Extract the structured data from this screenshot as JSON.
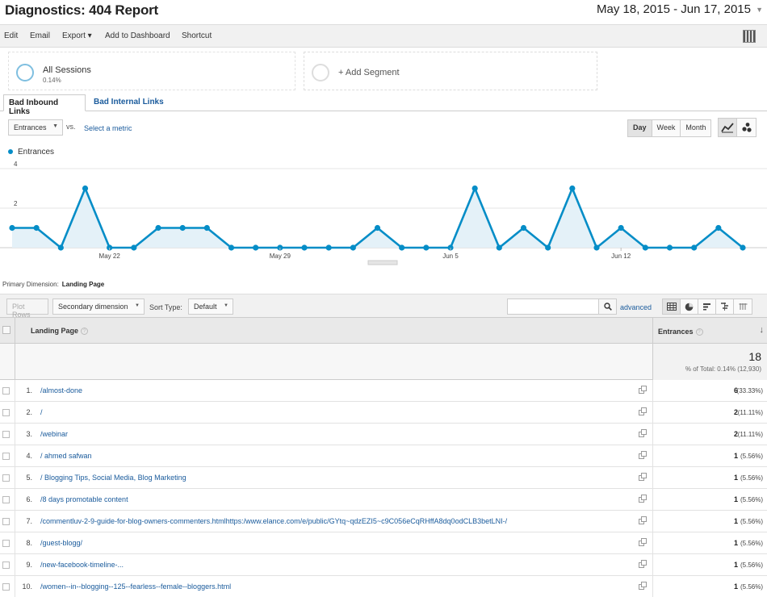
{
  "header": {
    "title": "Diagnostics: 404 Report",
    "date_range": "May 18, 2015 - Jun 17, 2015"
  },
  "toolbar": {
    "items": [
      "Edit",
      "Email",
      "Export ▾",
      "Add to Dashboard",
      "Shortcut"
    ]
  },
  "segments": {
    "segment1_name": "All Sessions",
    "segment1_pct": "0.14%",
    "add_segment": "+ Add Segment"
  },
  "tabs": {
    "inbound": "Bad Inbound Links",
    "internal": "Bad Internal Links"
  },
  "chart_controls": {
    "metric": "Entrances",
    "vs": "vs.",
    "select_metric": "Select a metric",
    "periods": [
      "Day",
      "Week",
      "Month"
    ],
    "active_period": "Day"
  },
  "chart_data": {
    "type": "area",
    "series": [
      {
        "name": "Entrances",
        "values": [
          1,
          1,
          0,
          3,
          0,
          0,
          1,
          1,
          1,
          0,
          0,
          0,
          0,
          0,
          0,
          1,
          0,
          0,
          0,
          3,
          0,
          1,
          0,
          3,
          0,
          1,
          0,
          0,
          0,
          1,
          0
        ]
      }
    ],
    "x": [
      "May 18",
      "May 19",
      "May 20",
      "May 21",
      "May 22",
      "May 23",
      "May 24",
      "May 25",
      "May 26",
      "May 27",
      "May 28",
      "May 29",
      "May 30",
      "May 31",
      "Jun 1",
      "Jun 2",
      "Jun 3",
      "Jun 4",
      "Jun 5",
      "Jun 6",
      "Jun 7",
      "Jun 8",
      "Jun 9",
      "Jun 10",
      "Jun 11",
      "Jun 12",
      "Jun 13",
      "Jun 14",
      "Jun 15",
      "Jun 16",
      "Jun 17"
    ],
    "x_tick_labels": [
      "May 22",
      "May 29",
      "Jun 5",
      "Jun 12"
    ],
    "y_tick_labels": [
      "4",
      "2"
    ],
    "ylim": [
      0,
      4
    ],
    "color": "#058dc7",
    "fill_color": "#e4f1f8"
  },
  "primary_dimension": {
    "label": "Primary Dimension:",
    "value": "Landing Page"
  },
  "table_toolbar": {
    "plot_rows": "Plot Rows",
    "secondary_dimension": "Secondary dimension",
    "sort_type_label": "Sort Type:",
    "sort_type_value": "Default",
    "advanced": "advanced"
  },
  "table": {
    "col_landing": "Landing Page",
    "col_entrances": "Entrances",
    "total_value": "18",
    "total_pct": "% of Total: 0.14% (12,930)",
    "rows": [
      {
        "num": "1.",
        "page": "/almost-done",
        "value": "6",
        "pct": "(33.33%)"
      },
      {
        "num": "2.",
        "page": "/",
        "value": "2",
        "pct": "(11.11%)"
      },
      {
        "num": "3.",
        "page": "/webinar",
        "value": "2",
        "pct": "(11.11%)"
      },
      {
        "num": "4.",
        "page": "/ ahmed safwan",
        "value": "1",
        "pct": "(5.56%)"
      },
      {
        "num": "5.",
        "page": "/ Blogging Tips, Social Media, Blog Marketing",
        "value": "1",
        "pct": "(5.56%)"
      },
      {
        "num": "6.",
        "page": "/8 days promotable content",
        "value": "1",
        "pct": "(5.56%)"
      },
      {
        "num": "7.",
        "page": "/commentluv-2-9-guide-for-blog-owners-commenters.htmlhttps:/www.elance.com/e/public/GYtq~qdzEZI5~c9C056eCqRHffA8dq0odCLB3betLNI-/",
        "value": "1",
        "pct": "(5.56%)"
      },
      {
        "num": "8.",
        "page": "/guest-blogg/",
        "value": "1",
        "pct": "(5.56%)"
      },
      {
        "num": "9.",
        "page": "/new-facebook-timeline-...",
        "value": "1",
        "pct": "(5.56%)"
      },
      {
        "num": "10.",
        "page": "/women--in--blogging--125--fearless--female--bloggers.html",
        "value": "1",
        "pct": "(5.56%)"
      }
    ]
  }
}
